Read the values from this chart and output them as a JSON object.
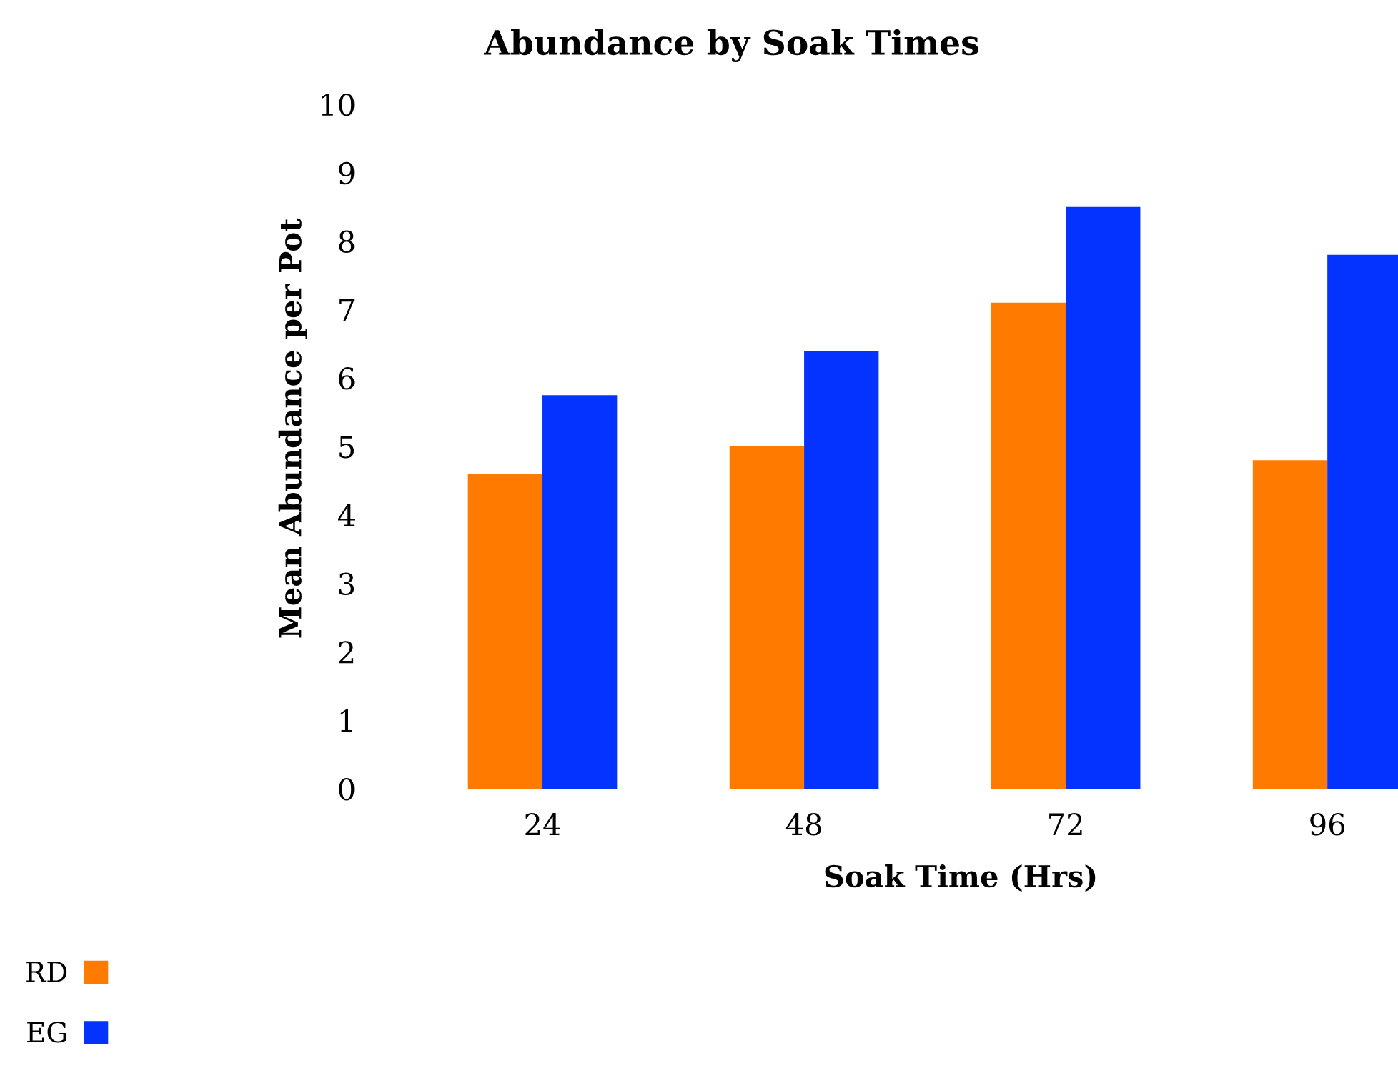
{
  "chart_data": {
    "type": "bar",
    "title": "Abundance by Soak Times",
    "xlabel": "Soak Time (Hrs)",
    "ylabel": "Mean Abundance per Pot",
    "categories": [
      "24",
      "48",
      "72",
      "96"
    ],
    "series": [
      {
        "name": "RD",
        "color": "#ff7b00",
        "values": [
          4.6,
          5.0,
          7.1,
          4.8
        ]
      },
      {
        "name": "EG",
        "color": "#0433ff",
        "values": [
          5.75,
          6.4,
          8.5,
          7.8
        ]
      }
    ],
    "ylim": [
      0,
      10
    ],
    "yticks": [
      0,
      1,
      2,
      3,
      4,
      5,
      6,
      7,
      8,
      9,
      10
    ],
    "grid": false,
    "legend": "bottom left"
  }
}
